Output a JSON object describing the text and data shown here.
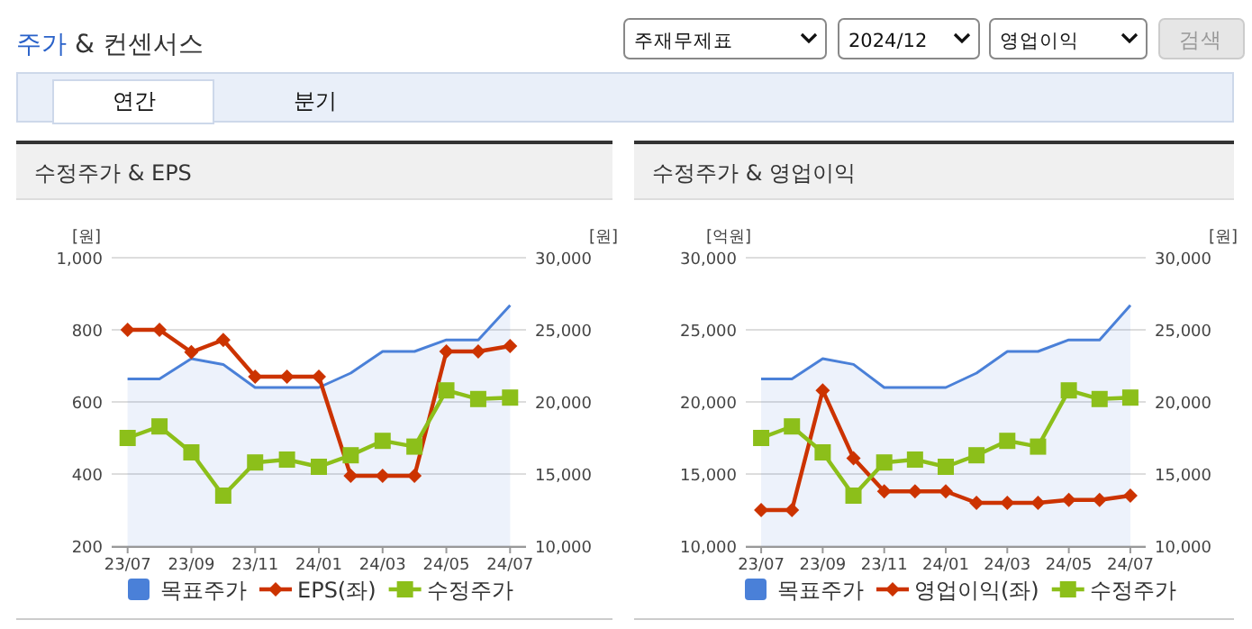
{
  "chart_data": [
    {
      "type": "other",
      "title": "주가 & 컨센서스",
      "annotations": [
        "주재무제표",
        "2024/12",
        "영업이익",
        "검색",
        "연간",
        "분기"
      ]
    },
    {
      "type": "line",
      "title": "수정주가 & EPS",
      "ylabel": "[원]",
      "y2label": "[원]",
      "categories": [
        "23/07",
        null,
        "23/09",
        null,
        "23/11",
        null,
        "24/01",
        null,
        "24/03",
        null,
        "24/05",
        null,
        "24/07"
      ],
      "ylim": [
        200,
        1000
      ],
      "yticks": [
        200,
        400,
        600,
        800,
        {
          "value": 1000,
          "label": "1,000"
        }
      ],
      "y2lim": [
        10000,
        30000
      ],
      "y2ticks": [
        {
          "value": 10000,
          "label": "10,000"
        },
        {
          "value": 15000,
          "label": "15,000"
        },
        {
          "value": 20000,
          "label": "20,000"
        },
        {
          "value": 25000,
          "label": "25,000"
        },
        {
          "value": 30000,
          "label": "30,000"
        }
      ],
      "grid": "y",
      "legend": "bottom",
      "series": [
        {
          "name": "목표주가",
          "type": "area",
          "axis": "y2",
          "color": "#4a80d8",
          "marker": "none",
          "values": [
            21600,
            21600,
            23000,
            22600,
            21000,
            21000,
            21000,
            22000,
            23500,
            23500,
            24300,
            24300,
            26700
          ]
        },
        {
          "name": "EPS(좌)",
          "type": "line",
          "color": "#cc3300",
          "marker": "diamond",
          "values": [
            800,
            800,
            738,
            772,
            670,
            670,
            670,
            395,
            395,
            395,
            740,
            740,
            755
          ]
        },
        {
          "name": "수정주가",
          "type": "line",
          "axis": "y2",
          "color": "#8cbf1a",
          "marker": "square",
          "values": [
            17500,
            18300,
            16500,
            13500,
            15800,
            16000,
            15500,
            16300,
            17300,
            16900,
            20800,
            20200,
            20300
          ]
        }
      ]
    },
    {
      "type": "line",
      "title": "수정주가 & 영업이익",
      "ylabel": "[억원]",
      "y2label": "[원]",
      "categories": [
        "23/07",
        null,
        "23/09",
        null,
        "23/11",
        null,
        "24/01",
        null,
        "24/03",
        null,
        "24/05",
        null,
        "24/07"
      ],
      "ylim": [
        10000,
        30000
      ],
      "yticks": [
        {
          "value": 10000,
          "label": "10,000"
        },
        {
          "value": 15000,
          "label": "15,000"
        },
        {
          "value": 20000,
          "label": "20,000"
        },
        {
          "value": 25000,
          "label": "25,000"
        },
        {
          "value": 30000,
          "label": "30,000"
        }
      ],
      "y2lim": [
        10000,
        30000
      ],
      "y2ticks": [
        {
          "value": 10000,
          "label": "10,000"
        },
        {
          "value": 15000,
          "label": "15,000"
        },
        {
          "value": 20000,
          "label": "20,000"
        },
        {
          "value": 25000,
          "label": "25,000"
        },
        {
          "value": 30000,
          "label": "30,000"
        }
      ],
      "grid": "y",
      "legend": "bottom",
      "series": [
        {
          "name": "목표주가",
          "type": "area",
          "axis": "y2",
          "color": "#4a80d8",
          "marker": "none",
          "values": [
            21600,
            21600,
            23000,
            22600,
            21000,
            21000,
            21000,
            22000,
            23500,
            23500,
            24300,
            24300,
            26700
          ]
        },
        {
          "name": "영업이익(좌)",
          "type": "line",
          "color": "#cc3300",
          "marker": "diamond",
          "values": [
            12500,
            12500,
            20800,
            16100,
            13800,
            13800,
            13800,
            13000,
            13000,
            13000,
            13200,
            13200,
            13500
          ]
        },
        {
          "name": "수정주가",
          "type": "line",
          "axis": "y2",
          "color": "#8cbf1a",
          "marker": "square",
          "values": [
            17500,
            18300,
            16500,
            13500,
            15800,
            16000,
            15500,
            16300,
            17300,
            16900,
            20800,
            20200,
            20300
          ]
        }
      ]
    }
  ]
}
